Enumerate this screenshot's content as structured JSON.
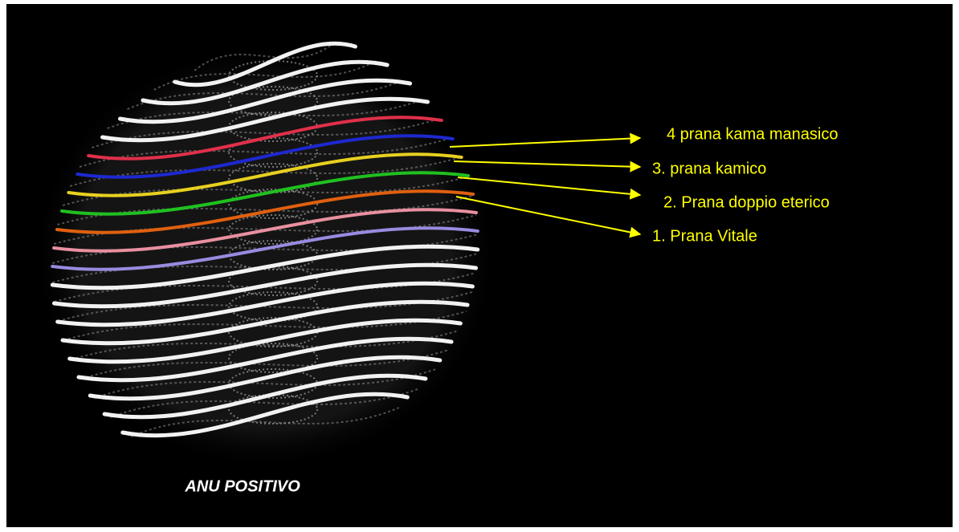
{
  "labels": [
    "4 prana kama manasico",
    "3. prana kamico",
    "2. Prana doppio eterico",
    "1. Prana Vitale"
  ],
  "caption": "ANU POSITIVO"
}
